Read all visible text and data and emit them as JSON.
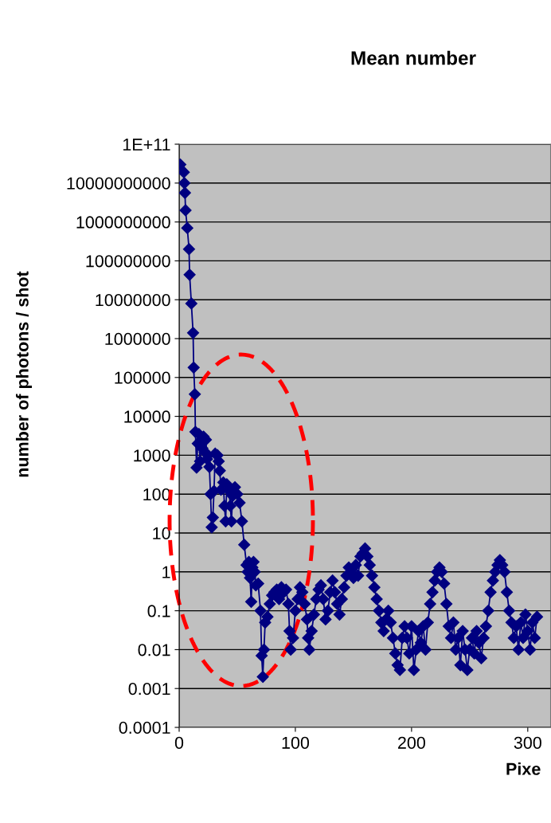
{
  "chart_data": {
    "type": "line",
    "title": "Mean number",
    "xlabel": "Pixe",
    "ylabel": "number of photons / shot",
    "log": "y",
    "grid": "y",
    "marker": "diamond",
    "line_style": "solid",
    "xlim": [
      0,
      320
    ],
    "xticks": [
      0,
      100,
      200,
      300
    ],
    "ylim": [
      0.0001,
      100000000000.0
    ],
    "yticks": [
      {
        "value": 100000000000.0,
        "label": "1E+11"
      },
      10000000000,
      1000000000,
      100000000,
      10000000,
      1000000,
      100000,
      10000,
      1000,
      100,
      10,
      1,
      0.1,
      0.01,
      0.001,
      0.0001
    ],
    "series": [
      {
        "color": "#000080",
        "x": [
          1,
          4,
          4.5,
          5,
          5.5,
          7,
          8.5,
          9,
          10.5,
          12,
          12.5,
          13.5,
          14,
          15,
          16,
          17,
          18,
          19,
          20,
          21,
          22,
          23,
          24,
          25,
          26,
          27,
          28,
          29,
          30,
          31,
          33,
          34,
          35,
          36,
          38,
          39,
          40,
          41,
          43,
          44,
          45,
          46,
          48,
          50,
          52,
          54,
          56,
          58,
          59,
          60,
          61,
          62,
          63,
          64,
          65,
          66,
          68,
          70,
          71,
          72,
          73,
          74,
          76,
          78,
          80,
          82,
          84,
          86,
          88,
          90,
          92,
          94,
          95,
          96,
          98,
          100,
          102,
          104,
          106,
          108,
          110,
          111,
          112,
          114,
          116,
          118,
          120,
          122,
          124,
          126,
          128,
          130,
          132,
          134,
          136,
          138,
          140,
          142,
          144,
          146,
          148,
          150,
          152,
          154,
          156,
          158,
          160,
          162,
          164,
          166,
          168,
          170,
          172,
          174,
          176,
          178,
          180,
          182,
          184,
          186,
          188,
          190,
          192,
          194,
          196,
          198,
          200,
          202,
          204,
          206,
          208,
          210,
          212,
          214,
          216,
          218,
          220,
          222,
          224,
          226,
          228,
          230,
          232,
          234,
          236,
          238,
          240,
          242,
          244,
          246,
          248,
          250,
          252,
          254,
          256,
          258,
          260,
          262,
          264,
          266,
          268,
          270,
          272,
          274,
          276,
          278,
          280,
          282,
          284,
          286,
          288,
          290,
          292,
          294,
          296,
          298,
          300,
          302,
          304,
          306,
          308
        ],
        "values": [
          30000000000,
          19000000000,
          10000000000,
          5600000000,
          2000000000,
          700000000,
          200000000,
          44000000,
          8000000,
          1400000,
          180000,
          37000,
          4000,
          480,
          2000,
          3500,
          700,
          2500,
          1500,
          3000,
          1200,
          2500,
          800,
          1000,
          500,
          100,
          14,
          25,
          120,
          1100,
          1000,
          700,
          400,
          130,
          200,
          50,
          20,
          180,
          120,
          50,
          20,
          90,
          150,
          100,
          60,
          20,
          5,
          1.5,
          1,
          1.8,
          0.7,
          0.17,
          1.3,
          1.8,
          1,
          0.45,
          0.5,
          0.1,
          0.007,
          0.002,
          0.01,
          0.05,
          0.07,
          0.15,
          0.25,
          0.3,
          0.35,
          0.2,
          0.4,
          0.3,
          0.35,
          0.15,
          0.03,
          0.01,
          0.02,
          0.1,
          0.2,
          0.4,
          0.3,
          0.15,
          0.06,
          0.02,
          0.01,
          0.03,
          0.08,
          0.2,
          0.35,
          0.45,
          0.2,
          0.06,
          0.1,
          0.3,
          0.6,
          0.3,
          0.15,
          0.08,
          0.2,
          0.4,
          0.8,
          1.3,
          1,
          0.7,
          1.5,
          0.8,
          2.5,
          3,
          4,
          2.5,
          1.5,
          0.8,
          0.4,
          0.2,
          0.1,
          0.05,
          0.03,
          0.06,
          0.1,
          0.05,
          0.02,
          0.008,
          0.004,
          0.003,
          0.02,
          0.04,
          0.02,
          0.008,
          0.04,
          0.003,
          0.01,
          0.03,
          0.015,
          0.04,
          0.01,
          0.05,
          0.15,
          0.3,
          0.6,
          1,
          1.3,
          1,
          0.5,
          0.15,
          0.04,
          0.02,
          0.05,
          0.01,
          0.02,
          0.004,
          0.03,
          0.01,
          0.003,
          0.01,
          0.02,
          0.008,
          0.03,
          0.015,
          0.006,
          0.02,
          0.04,
          0.1,
          0.3,
          0.6,
          1,
          1.5,
          2,
          1.5,
          1,
          0.3,
          0.1,
          0.05,
          0.02,
          0.04,
          0.01,
          0.05,
          0.02,
          0.08,
          0.03,
          0.01,
          0.05,
          0.02,
          0.07
        ]
      }
    ]
  }
}
